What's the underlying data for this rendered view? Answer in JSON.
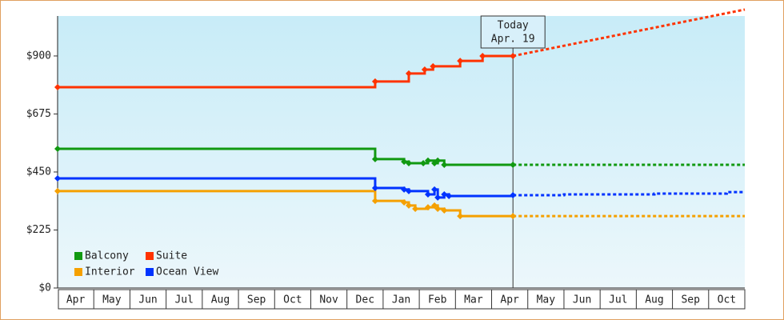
{
  "chart_data": {
    "type": "line",
    "step": "post",
    "xlim": [
      0,
      19
    ],
    "ylim": [
      0,
      1055
    ],
    "yticks": [
      {
        "value": 0,
        "label": "$0"
      },
      {
        "value": 225,
        "label": "$225"
      },
      {
        "value": 450,
        "label": "$450"
      },
      {
        "value": 675,
        "label": "$675"
      },
      {
        "value": 900,
        "label": "$900"
      }
    ],
    "xticks": [
      {
        "value": 0.5,
        "label": "Apr"
      },
      {
        "value": 1.5,
        "label": "May"
      },
      {
        "value": 2.5,
        "label": "Jun"
      },
      {
        "value": 3.5,
        "label": "Jul"
      },
      {
        "value": 4.5,
        "label": "Aug"
      },
      {
        "value": 5.5,
        "label": "Sep"
      },
      {
        "value": 6.5,
        "label": "Oct"
      },
      {
        "value": 7.5,
        "label": "Nov"
      },
      {
        "value": 8.5,
        "label": "Dec"
      },
      {
        "value": 9.5,
        "label": "Jan"
      },
      {
        "value": 10.5,
        "label": "Feb"
      },
      {
        "value": 11.5,
        "label": "Mar"
      },
      {
        "value": 12.5,
        "label": "Apr"
      },
      {
        "value": 13.5,
        "label": "May"
      },
      {
        "value": 14.5,
        "label": "Jun"
      },
      {
        "value": 15.5,
        "label": "Jul"
      },
      {
        "value": 16.5,
        "label": "Aug"
      },
      {
        "value": 17.5,
        "label": "Sep"
      },
      {
        "value": 18.5,
        "label": "Oct"
      }
    ],
    "today": {
      "x": 12.59,
      "label": "Today",
      "date": "Apr. 19"
    },
    "legend": "lower left",
    "series": [
      {
        "name": "Balcony",
        "color": "#119911",
        "x": [
          0,
          8.78,
          9.58,
          9.71,
          10.11,
          10.24,
          10.42,
          10.51,
          10.69,
          12.59
        ],
        "values": [
          540,
          500,
          490,
          484,
          484,
          494,
          484,
          494,
          478,
          478
        ],
        "forecast": {
          "step": true,
          "x": [
            12.59,
            19
          ],
          "values": [
            478,
            478
          ]
        }
      },
      {
        "name": "Suite",
        "color": "#ff3300",
        "x": [
          0,
          8.78,
          9.71,
          10.15,
          10.38,
          11.13,
          11.75,
          12.59
        ],
        "values": [
          779,
          801,
          832,
          847,
          860,
          881,
          900,
          900
        ],
        "forecast": {
          "step": false,
          "x": [
            12.59,
            19
          ],
          "values": [
            900,
            1080
          ]
        }
      },
      {
        "name": "Interior",
        "color": "#f5a000",
        "x": [
          0,
          8.78,
          9.58,
          9.71,
          9.89,
          10.24,
          10.42,
          10.51,
          10.69,
          11.13,
          12.59
        ],
        "values": [
          376,
          338,
          332,
          320,
          307,
          313,
          320,
          307,
          301,
          279,
          279
        ],
        "forecast": {
          "step": true,
          "x": [
            12.59,
            19
          ],
          "values": [
            279,
            279
          ]
        }
      },
      {
        "name": "Ocean View",
        "color": "#0033ff",
        "x": [
          0,
          8.78,
          9.58,
          9.71,
          10.24,
          10.42,
          10.51,
          10.69,
          10.82,
          12.59
        ],
        "values": [
          425,
          388,
          382,
          376,
          363,
          382,
          351,
          363,
          357,
          360
        ],
        "forecast": {
          "step": true,
          "x": [
            12.59,
            14,
            16.5,
            18.5,
            19
          ],
          "values": [
            360,
            363,
            366,
            372,
            372
          ]
        }
      }
    ]
  }
}
